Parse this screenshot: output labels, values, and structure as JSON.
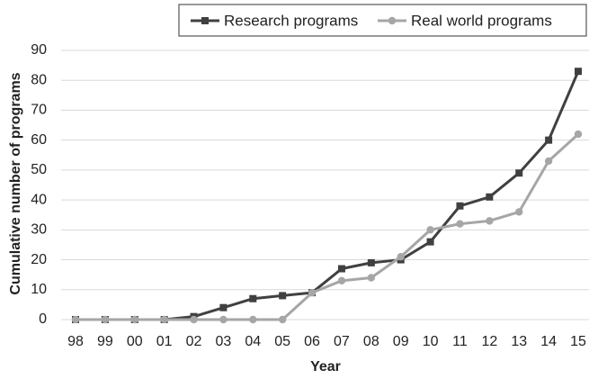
{
  "chart_data": {
    "type": "line",
    "xlabel": "Year",
    "ylabel": "Cumulative number of  programs",
    "categories": [
      "98",
      "99",
      "00",
      "01",
      "02",
      "03",
      "04",
      "05",
      "06",
      "07",
      "08",
      "09",
      "10",
      "11",
      "12",
      "13",
      "14",
      "15"
    ],
    "series": [
      {
        "name": "Research programs",
        "color": "#404040",
        "marker": "square",
        "values": [
          0,
          0,
          0,
          0,
          1,
          4,
          7,
          8,
          9,
          17,
          19,
          20,
          26,
          38,
          41,
          49,
          60,
          83
        ]
      },
      {
        "name": "Real world programs",
        "color": "#a6a6a6",
        "marker": "circle",
        "values": [
          0,
          0,
          0,
          0,
          0,
          0,
          0,
          0,
          9,
          13,
          14,
          21,
          30,
          32,
          33,
          36,
          53,
          62
        ]
      }
    ],
    "ylim": [
      0,
      90
    ],
    "yticks": [
      0,
      10,
      20,
      30,
      40,
      50,
      60,
      70,
      80,
      90
    ],
    "grid": true,
    "legend": "top-right"
  }
}
